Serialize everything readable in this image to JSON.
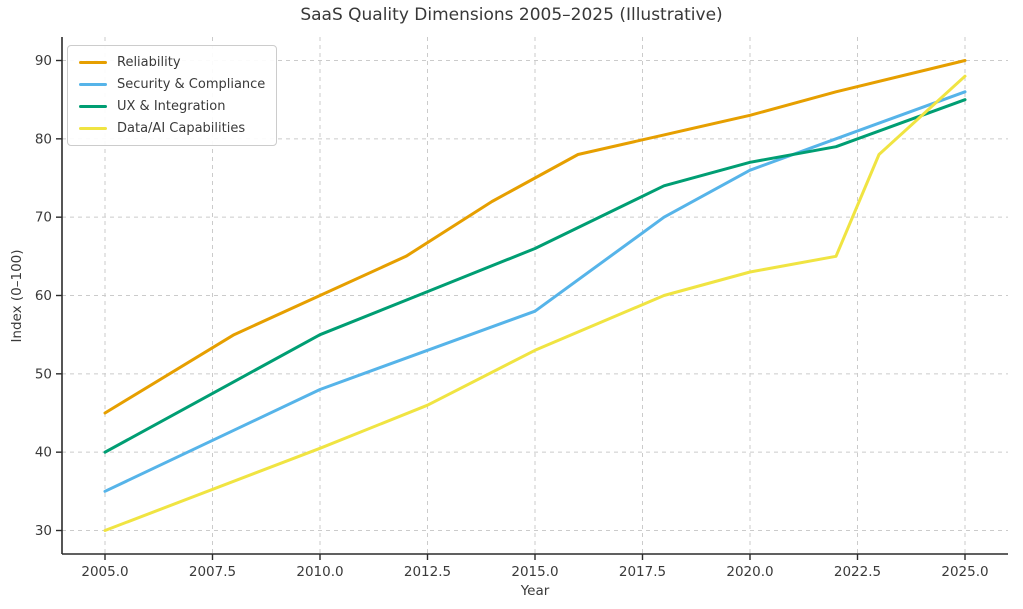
{
  "chart_data": {
    "type": "line",
    "title": "SaaS Quality Dimensions 2005–2025 (Illustrative)",
    "xlabel": "Year",
    "ylabel": "Index (0–100)",
    "xlim": [
      2004,
      2026
    ],
    "ylim": [
      27,
      93
    ],
    "x_ticks": [
      2005,
      2007.5,
      2010,
      2012.5,
      2015,
      2017.5,
      2020,
      2022.5,
      2025
    ],
    "x_tick_labels": [
      "2005.0",
      "2007.5",
      "2010.0",
      "2012.5",
      "2015.0",
      "2017.5",
      "2020.0",
      "2022.5",
      "2025.0"
    ],
    "y_ticks": [
      30,
      40,
      50,
      60,
      70,
      80,
      90
    ],
    "y_tick_labels": [
      "30",
      "40",
      "50",
      "60",
      "70",
      "80",
      "90"
    ],
    "grid": true,
    "grid_style": "dashed",
    "legend_position": "upper-left",
    "colors": {
      "grid": "#cbcbcb",
      "spine": "#2b2b2b",
      "tick_label": "#3a3a3a",
      "title": "#383838"
    },
    "series": [
      {
        "name": "Reliability",
        "color": "#E69F00",
        "x": [
          2005,
          2008,
          2010,
          2012,
          2014,
          2015,
          2016,
          2018,
          2020,
          2022,
          2025
        ],
        "y": [
          45,
          55,
          60,
          65,
          72,
          75,
          78,
          80.5,
          83,
          86,
          90
        ]
      },
      {
        "name": "Security & Compliance",
        "color": "#56B4E9",
        "x": [
          2005,
          2010,
          2012.5,
          2015,
          2018,
          2020,
          2022,
          2025
        ],
        "y": [
          35,
          48,
          53,
          58,
          70,
          76,
          80,
          86
        ]
      },
      {
        "name": "UX & Integration",
        "color": "#009E73",
        "x": [
          2005,
          2010,
          2012.5,
          2015,
          2018,
          2020,
          2022,
          2025
        ],
        "y": [
          40,
          55,
          60.5,
          66,
          74,
          77,
          79,
          85
        ]
      },
      {
        "name": "Data/AI Capabilities",
        "color": "#F0E442",
        "x": [
          2005,
          2010,
          2012.5,
          2015,
          2018,
          2020,
          2022,
          2023,
          2025
        ],
        "y": [
          30,
          40.5,
          46,
          53,
          60,
          63,
          65,
          78,
          88
        ]
      }
    ]
  }
}
